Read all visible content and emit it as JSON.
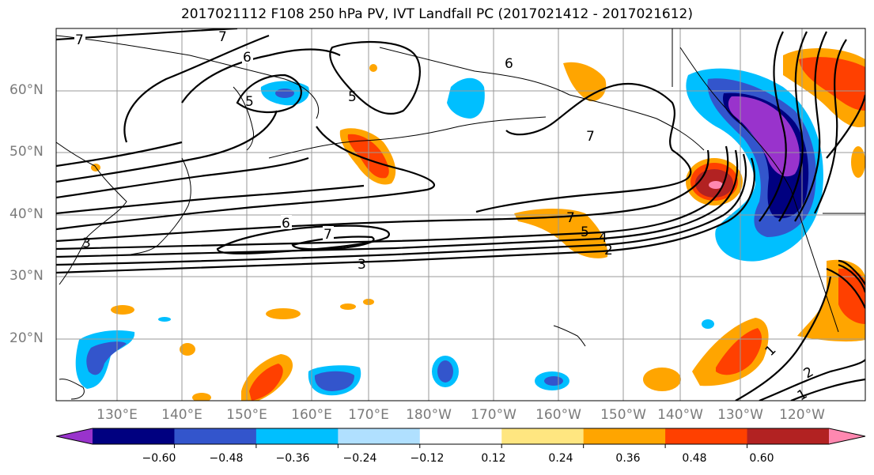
{
  "title": "2017021112 F108 250 hPa PV, IVT Landfall PC (2017021412 - 2017021612)",
  "lat_labels": [
    "60°N",
    "50°N",
    "40°N",
    "30°N",
    "20°N"
  ],
  "lon_labels": [
    "130°E",
    "140°E",
    "150°E",
    "160°E",
    "170°E",
    "180°W",
    "170°W",
    "160°W",
    "150°W",
    "140°W",
    "130°W",
    "120°W"
  ],
  "contour_labels": [
    "7",
    "7",
    "6",
    "6",
    "5",
    "5",
    "7",
    "6",
    "7",
    "3",
    "7",
    "5",
    "4",
    "2",
    "3",
    "1",
    "2",
    "1"
  ],
  "colorbar": {
    "ticks": [
      "−0.60",
      "−0.48",
      "−0.36",
      "−0.24",
      "−0.12",
      "0.12",
      "0.24",
      "0.36",
      "0.48",
      "0.60"
    ],
    "colors": [
      "#9933cc",
      "#000080",
      "#3355cc",
      "#00bfff",
      "#b0e0ff",
      "#ffffff",
      "#ffe680",
      "#ffa500",
      "#ff4000",
      "#b22222",
      "#ff88b0"
    ]
  }
}
